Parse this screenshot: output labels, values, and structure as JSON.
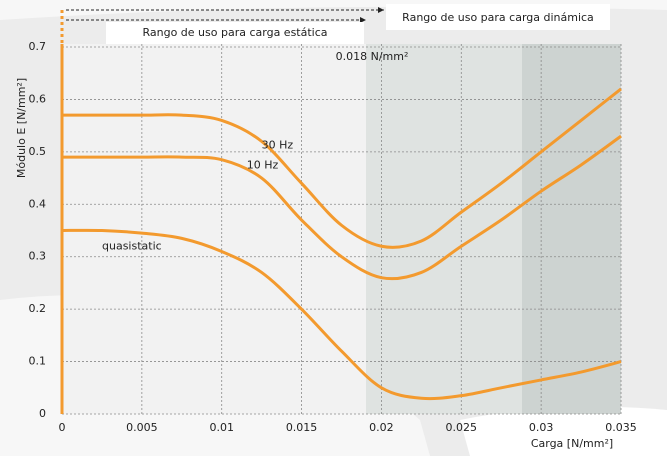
{
  "chart_data": {
    "type": "line",
    "y_label": "Módulo E [N/mm²]",
    "x_label": "Carga  [N/mm²]",
    "annotations": [
      "Rango de uso para carga estática",
      "Rango de uso para carga dinámica",
      "0.018 N/mm²"
    ],
    "x": [
      0,
      0.0025,
      0.005,
      0.0075,
      0.01,
      0.0125,
      0.015,
      0.0175,
      0.02,
      0.0225,
      0.025,
      0.0275,
      0.03,
      0.0325,
      0.035
    ],
    "series": [
      {
        "name": "30 Hz",
        "color": "#f39a2e",
        "values": [
          0.57,
          0.57,
          0.57,
          0.57,
          0.56,
          0.52,
          0.44,
          0.36,
          0.32,
          0.33,
          0.385,
          0.44,
          0.5,
          0.56,
          0.62
        ]
      },
      {
        "name": "10 Hz",
        "color": "#f39a2e",
        "values": [
          0.49,
          0.49,
          0.49,
          0.49,
          0.485,
          0.45,
          0.37,
          0.3,
          0.26,
          0.27,
          0.32,
          0.37,
          0.425,
          0.475,
          0.53
        ]
      },
      {
        "name": "quasistatic",
        "color": "#f39a2e",
        "values": [
          0.35,
          0.35,
          0.345,
          0.335,
          0.31,
          0.27,
          0.2,
          0.12,
          0.05,
          0.03,
          0.035,
          0.05,
          0.065,
          0.08,
          0.1
        ]
      }
    ],
    "xlim": [
      0,
      0.035
    ],
    "ylim": [
      0,
      0.7
    ],
    "xticks": [
      0,
      0.005,
      0.01,
      0.015,
      0.02,
      0.025,
      0.03,
      0.035
    ],
    "yticks": [
      0,
      0.1,
      0.2,
      0.3,
      0.4,
      0.5,
      0.6,
      0.7
    ],
    "grid": true
  }
}
